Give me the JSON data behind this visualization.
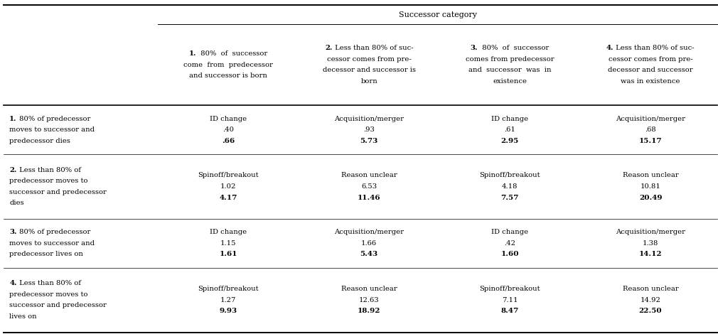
{
  "title": "Successor category",
  "col_header_lines": [
    [
      "1.  80%  of  successor",
      "come  from  predecessor",
      "and successor is born"
    ],
    [
      "2. Less than 80% of suc-",
      "cessor comes from pre-",
      "decessor and successor is",
      "born"
    ],
    [
      "3.  80%  of  successor",
      "comes from predecessor",
      "and  successor  was  in",
      "existence"
    ],
    [
      "4. Less than 80% of suc-",
      "cessor comes from pre-",
      "decessor and successor",
      "was in existence"
    ]
  ],
  "col_header_bold": [
    "1.",
    "2.",
    "3.",
    "4."
  ],
  "row_header_lines": [
    [
      "1. 80% of predecessor",
      "moves to successor and",
      "predecessor dies"
    ],
    [
      "2. Less than 80% of",
      "predecessor moves to",
      "successor and predecessor",
      "dies"
    ],
    [
      "3. 80% of predecessor",
      "moves to successor and",
      "predecessor lives on"
    ],
    [
      "4. Less than 80% of",
      "predecessor moves to",
      "successor and predecessor",
      "lives on"
    ]
  ],
  "row_header_bold": [
    "1.",
    "2.",
    "3.",
    "4."
  ],
  "cells": [
    [
      {
        "label": "ID change",
        "val1": ".40",
        "val2": ".66"
      },
      {
        "label": "Acquisition/merger",
        "val1": ".93",
        "val2": "5.73"
      },
      {
        "label": "ID change",
        "val1": ".61",
        "val2": "2.95"
      },
      {
        "label": "Acquisition/merger",
        "val1": ".68",
        "val2": "15.17"
      }
    ],
    [
      {
        "label": "Spinoff/breakout",
        "val1": "1.02",
        "val2": "4.17"
      },
      {
        "label": "Reason unclear",
        "val1": "6.53",
        "val2": "11.46"
      },
      {
        "label": "Spinoff/breakout",
        "val1": "4.18",
        "val2": "7.57"
      },
      {
        "label": "Reason unclear",
        "val1": "10.81",
        "val2": "20.49"
      }
    ],
    [
      {
        "label": "ID change",
        "val1": "1.15",
        "val2": "1.61"
      },
      {
        "label": "Acquisition/merger",
        "val1": "1.66",
        "val2": "5.43"
      },
      {
        "label": "ID change",
        "val1": ".42",
        "val2": "1.60"
      },
      {
        "label": "Acquisition/merger",
        "val1": "1.38",
        "val2": "14.12"
      }
    ],
    [
      {
        "label": "Spinoff/breakout",
        "val1": "1.27",
        "val2": "9.93"
      },
      {
        "label": "Reason unclear",
        "val1": "12.63",
        "val2": "18.92"
      },
      {
        "label": "Spinoff/breakout",
        "val1": "7.11",
        "val2": "8.47"
      },
      {
        "label": "Reason unclear",
        "val1": "14.92",
        "val2": "22.50"
      }
    ]
  ],
  "bg_color": "#ffffff",
  "text_color": "#000000",
  "line_color": "#000000",
  "fs_title": 8.0,
  "fs_header": 7.2,
  "fs_cell": 7.2
}
